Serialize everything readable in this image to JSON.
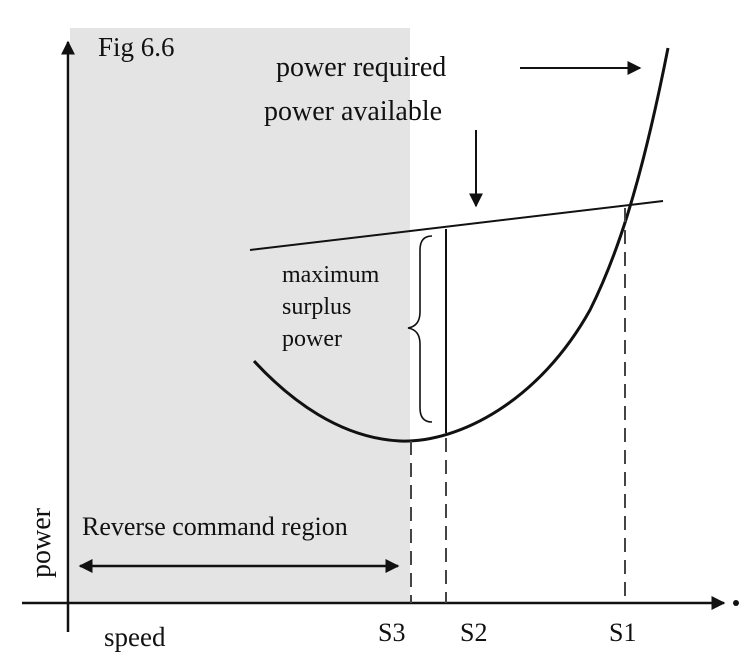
{
  "figure": {
    "fig_label": "Fig 6.6",
    "labels": {
      "power_required": "power required",
      "power_available": "power available",
      "surplus_line1": "maximum",
      "surplus_line2": "surplus",
      "surplus_line3": "power",
      "reverse_region": "Reverse command region",
      "y_axis": "power",
      "x_axis": "speed",
      "s1": "S1",
      "s2": "S2",
      "s3": "S3"
    },
    "colors": {
      "shade": "#e4e4e4",
      "ink": "#111111",
      "dashed": "#444444",
      "background": "#ffffff"
    }
  }
}
